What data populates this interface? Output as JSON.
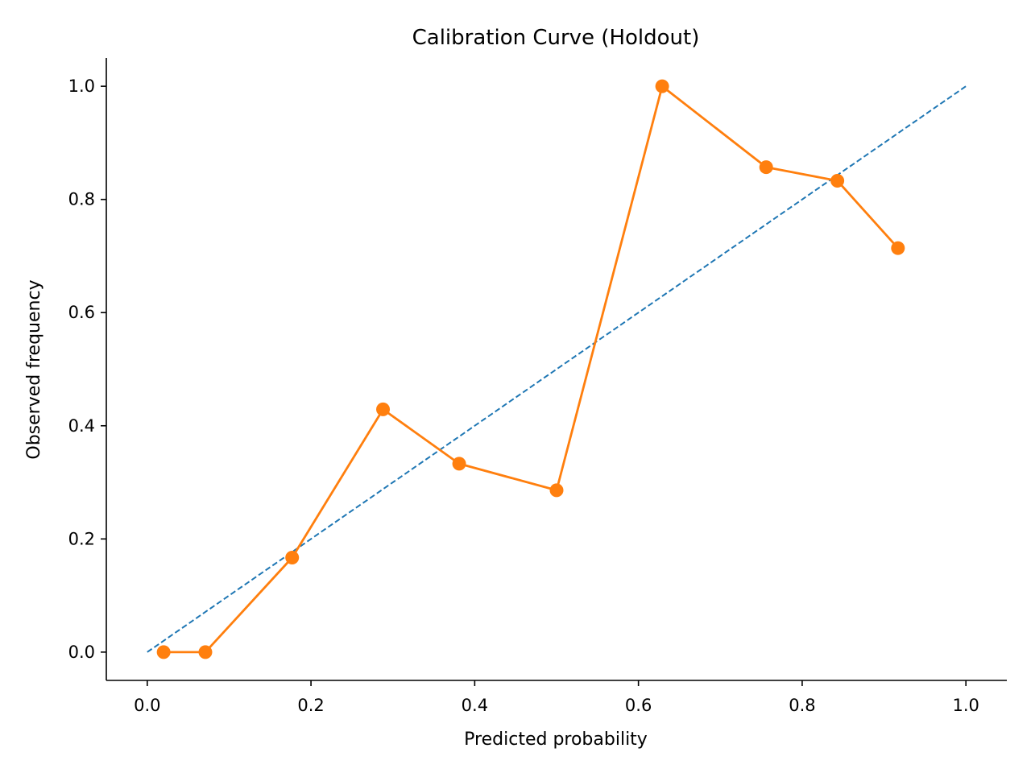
{
  "chart_data": {
    "type": "line",
    "title": "Calibration Curve (Holdout)",
    "xlabel": "Predicted probability",
    "ylabel": "Observed frequency",
    "xlim": [
      -0.05,
      1.05
    ],
    "ylim": [
      -0.05,
      1.05
    ],
    "xticks": [
      0.0,
      0.2,
      0.4,
      0.6,
      0.8,
      1.0
    ],
    "yticks": [
      0.0,
      0.2,
      0.4,
      0.6,
      0.8,
      1.0
    ],
    "xtick_labels": [
      "0.0",
      "0.2",
      "0.4",
      "0.6",
      "0.8",
      "1.0"
    ],
    "ytick_labels": [
      "0.0",
      "0.2",
      "0.4",
      "0.6",
      "0.8",
      "1.0"
    ],
    "grid": false,
    "legend": "none",
    "series": [
      {
        "role": "reference",
        "style": "dashed",
        "color": "#1f77b4",
        "x": [
          0.0,
          1.0
        ],
        "y": [
          0.0,
          1.0
        ]
      },
      {
        "role": "calibration",
        "style": "solid-with-markers",
        "color": "#ff7f0e",
        "x": [
          0.02,
          0.071,
          0.177,
          0.288,
          0.381,
          0.5,
          0.629,
          0.756,
          0.843,
          0.917
        ],
        "y": [
          0.0,
          0.0,
          0.167,
          0.429,
          0.333,
          0.286,
          1.0,
          0.857,
          0.833,
          0.714
        ]
      }
    ]
  }
}
